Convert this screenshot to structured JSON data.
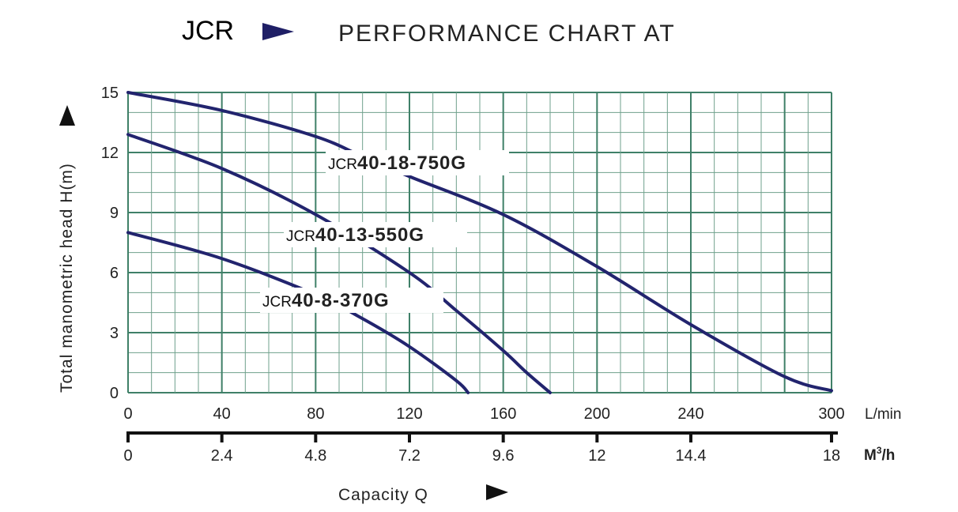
{
  "title": {
    "series": "JCR",
    "main": "PERFORMANCE CHART AT"
  },
  "colors": {
    "curve": "#22246e",
    "grid": "#6fa08c",
    "grid_major": "#3f8068",
    "arrow": "#1f1f66"
  },
  "chart_data": {
    "type": "line",
    "title": "PERFORMANCE CHART AT",
    "ylabel": "Total manometric head H(m)",
    "xlabel": "Capacity Q",
    "ylim": [
      0,
      15
    ],
    "xlim": [
      0,
      300
    ],
    "yticks": [
      "0",
      "3",
      "6",
      "9",
      "12",
      "15"
    ],
    "xticks_lmin": [
      "0",
      "40",
      "80",
      "120",
      "160",
      "200",
      "240",
      "300"
    ],
    "xticks_m3h": [
      "0",
      "2.4",
      "4.8",
      "7.2",
      "9.6",
      "12",
      "14.4",
      "18"
    ],
    "x_unit_primary": "L/min",
    "x_unit_secondary_base": "M",
    "x_unit_secondary_sup": "3",
    "x_unit_secondary_tail": "/h",
    "grid": true,
    "series": [
      {
        "name": "JCR40-18-750G",
        "prefix": "JCR",
        "model": "40-18-750G",
        "x": [
          0,
          40,
          80,
          100,
          120,
          160,
          200,
          240,
          280,
          300
        ],
        "y": [
          15,
          14.1,
          12.8,
          11.8,
          10.8,
          8.9,
          6.3,
          3.4,
          0.8,
          0.1
        ]
      },
      {
        "name": "JCR40-13-550G",
        "prefix": "JCR",
        "model": "40-13-550G",
        "x": [
          0,
          40,
          80,
          120,
          140,
          160,
          170,
          180
        ],
        "y": [
          12.9,
          11.2,
          8.9,
          6.0,
          4.1,
          2.1,
          1.0,
          0
        ]
      },
      {
        "name": "JCR40-8-370G",
        "prefix": "JCR",
        "model": "40-8-370G",
        "x": [
          0,
          40,
          80,
          100,
          120,
          140,
          145
        ],
        "y": [
          8.0,
          6.7,
          4.9,
          3.7,
          2.3,
          0.6,
          0
        ]
      }
    ]
  }
}
